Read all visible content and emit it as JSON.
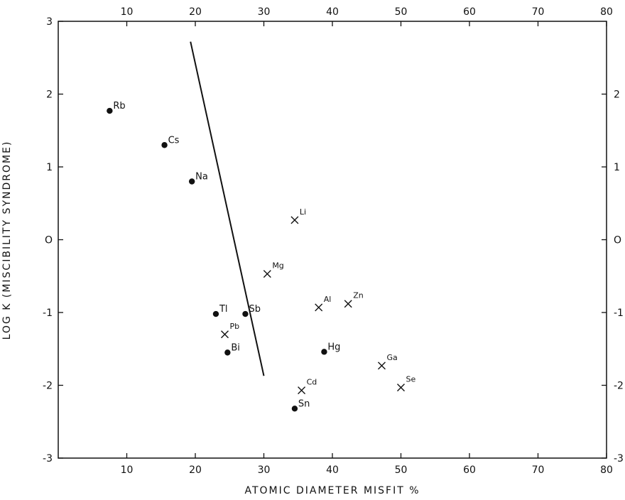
{
  "chart_data": {
    "type": "scatter",
    "title": "",
    "xlabel": "ATOMIC DIAMETER MISFIT %",
    "ylabel": "LOG K (MISCIBILITY SYNDROME)",
    "xlim": [
      0,
      80
    ],
    "ylim": [
      -3,
      3
    ],
    "x_ticks": [
      10,
      20,
      30,
      40,
      50,
      60,
      70,
      80
    ],
    "x_tick_labels": [
      "10",
      "20",
      "30",
      "40",
      "50",
      "60",
      "70",
      "80"
    ],
    "y_ticks": [
      -3,
      -2,
      -1,
      0,
      1,
      2,
      3
    ],
    "y_tick_labels_left": [
      "-3",
      "-2",
      "-1",
      "O",
      "1",
      "2",
      "3"
    ],
    "y_ticks_right": [
      -3,
      -2,
      -1,
      0,
      1,
      2
    ],
    "y_tick_labels_right": [
      "-3",
      "-2",
      "-1",
      "O",
      "1",
      "2"
    ],
    "grid": false,
    "points": [
      {
        "label": "Rb",
        "marker": "dot",
        "x": 7.5,
        "y": 1.77
      },
      {
        "label": "Cs",
        "marker": "dot",
        "x": 15.5,
        "y": 1.3
      },
      {
        "label": "Na",
        "marker": "dot",
        "x": 19.5,
        "y": 0.8
      },
      {
        "label": "Li",
        "marker": "cross",
        "x": 34.5,
        "y": 0.27
      },
      {
        "label": "Mg",
        "marker": "cross",
        "x": 30.5,
        "y": -0.47
      },
      {
        "label": "Tl",
        "marker": "dot",
        "x": 23.0,
        "y": -1.02
      },
      {
        "label": "Sb",
        "marker": "dot",
        "x": 27.3,
        "y": -1.02
      },
      {
        "label": "Pb",
        "marker": "cross",
        "x": 24.3,
        "y": -1.3
      },
      {
        "label": "Bi",
        "marker": "dot",
        "x": 24.7,
        "y": -1.55
      },
      {
        "label": "Al",
        "marker": "cross",
        "x": 38.0,
        "y": -0.93
      },
      {
        "label": "Zn",
        "marker": "cross",
        "x": 42.3,
        "y": -0.88
      },
      {
        "label": "Hg",
        "marker": "dot",
        "x": 38.8,
        "y": -1.54
      },
      {
        "label": "Ga",
        "marker": "cross",
        "x": 47.2,
        "y": -1.73
      },
      {
        "label": "Se",
        "marker": "cross",
        "x": 50.0,
        "y": -2.03
      },
      {
        "label": "Cd",
        "marker": "cross",
        "x": 35.5,
        "y": -2.07
      },
      {
        "label": "Sn",
        "marker": "dot",
        "x": 34.5,
        "y": -2.32
      }
    ],
    "boundary_line": [
      {
        "x": 19.3,
        "y": 2.72
      },
      {
        "x": 30.0,
        "y": -1.87
      }
    ]
  }
}
